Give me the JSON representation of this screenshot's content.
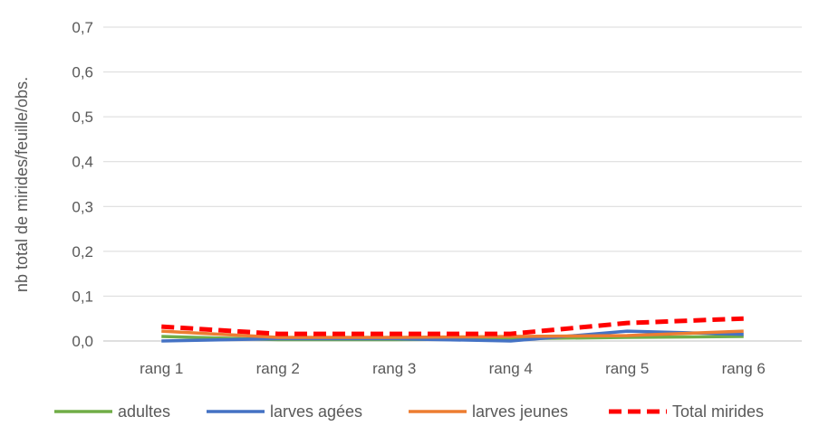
{
  "chart_data": {
    "type": "line",
    "title": "",
    "xlabel": "",
    "ylabel": "nb total de mirides/feuille/obs.",
    "categories": [
      "rang 1",
      "rang 2",
      "rang 3",
      "rang 4",
      "rang 5",
      "rang 6"
    ],
    "ylim": [
      0,
      0.7
    ],
    "yticks": [
      "0,0",
      "0,1",
      "0,2",
      "0,3",
      "0,4",
      "0,5",
      "0,6",
      "0,7"
    ],
    "grid": true,
    "legend_position": "bottom",
    "series": [
      {
        "name": "adultes",
        "color": "#70ad47",
        "dash": "solid",
        "values": [
          0.01,
          0.003,
          0.003,
          0.005,
          0.008,
          0.01
        ]
      },
      {
        "name": "larves agées",
        "color": "#4472c4",
        "dash": "solid",
        "values": [
          0.0,
          0.005,
          0.005,
          0.0,
          0.022,
          0.015
        ]
      },
      {
        "name": "larves jeunes",
        "color": "#ed7d31",
        "dash": "solid",
        "values": [
          0.022,
          0.008,
          0.008,
          0.01,
          0.012,
          0.022
        ]
      },
      {
        "name": "Total mirides",
        "color": "#ff0000",
        "dash": "dashed",
        "values": [
          0.032,
          0.016,
          0.016,
          0.016,
          0.04,
          0.05
        ]
      }
    ]
  }
}
